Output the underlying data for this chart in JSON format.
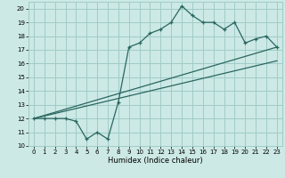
{
  "title": "",
  "xlabel": "Humidex (Indice chaleur)",
  "bg_color": "#cce9e5",
  "grid_color": "#a0ccc8",
  "line_color": "#2a6660",
  "xlim": [
    -0.5,
    23.5
  ],
  "ylim": [
    10,
    20.5
  ],
  "xticks": [
    0,
    1,
    2,
    3,
    4,
    5,
    6,
    7,
    8,
    9,
    10,
    11,
    12,
    13,
    14,
    15,
    16,
    17,
    18,
    19,
    20,
    21,
    22,
    23
  ],
  "yticks": [
    10,
    11,
    12,
    13,
    14,
    15,
    16,
    17,
    18,
    19,
    20
  ],
  "main_data": [
    12.0,
    12.0,
    12.0,
    12.0,
    11.8,
    10.5,
    11.0,
    10.5,
    13.2,
    17.2,
    17.5,
    18.2,
    18.5,
    19.0,
    20.2,
    19.5,
    19.0,
    19.0,
    18.5,
    19.0,
    17.5,
    17.8,
    18.0,
    17.2
  ],
  "line1_x": [
    0,
    23
  ],
  "line1_y": [
    12.0,
    16.2
  ],
  "line2_x": [
    0,
    23
  ],
  "line2_y": [
    12.0,
    17.2
  ]
}
